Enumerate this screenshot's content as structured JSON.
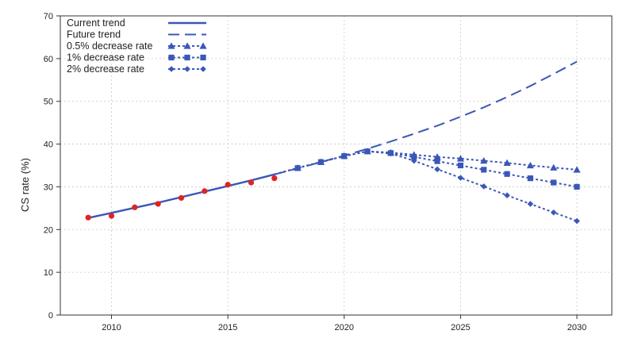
{
  "chart_data": {
    "type": "line",
    "title": "",
    "xlabel": "",
    "ylabel": "CS rate (%)",
    "xlim": [
      2007.8,
      2031.5
    ],
    "ylim": [
      0,
      70
    ],
    "xticks": [
      2010,
      2015,
      2020,
      2025,
      2030
    ],
    "yticks": [
      0,
      10,
      20,
      30,
      40,
      50,
      60,
      70
    ],
    "grid": true,
    "legend_position": "top-left",
    "color": "#3b57b8",
    "observed_points": {
      "color": "#e02424",
      "x": [
        2009,
        2010,
        2011,
        2012,
        2013,
        2014,
        2015,
        2016,
        2017
      ],
      "y": [
        22.8,
        23.2,
        25.2,
        26.0,
        27.4,
        29.0,
        30.5,
        31.0,
        32.0
      ]
    },
    "series": [
      {
        "name": "Current trend",
        "style": "solid",
        "marker": "none",
        "x": [
          2009,
          2010,
          2011,
          2012,
          2013,
          2014,
          2015,
          2016,
          2017
        ],
        "y": [
          22.7,
          23.9,
          25.1,
          26.3,
          27.6,
          28.9,
          30.2,
          31.5,
          32.9
        ]
      },
      {
        "name": "Future trend",
        "style": "dashed",
        "marker": "none",
        "x": [
          2017,
          2018,
          2019,
          2020,
          2021,
          2022,
          2023,
          2024,
          2025,
          2026,
          2027,
          2028,
          2029,
          2030
        ],
        "y": [
          32.9,
          34.3,
          35.8,
          37.3,
          38.9,
          40.6,
          42.4,
          44.3,
          46.4,
          48.6,
          51.0,
          53.6,
          56.4,
          59.3
        ]
      },
      {
        "name": "0.5% decrease rate",
        "style": "dotted",
        "marker": "triangle",
        "x": [
          2017,
          2018,
          2019,
          2020,
          2021,
          2022,
          2023,
          2024,
          2025,
          2026,
          2027,
          2028,
          2029,
          2030
        ],
        "y": [
          32.9,
          34.4,
          35.8,
          37.2,
          38.3,
          38.0,
          37.5,
          37.0,
          36.6,
          36.1,
          35.6,
          35.0,
          34.5,
          34.0
        ]
      },
      {
        "name": "1% decrease rate",
        "style": "dotted",
        "marker": "square",
        "x": [
          2017,
          2018,
          2019,
          2020,
          2021,
          2022,
          2023,
          2024,
          2025,
          2026,
          2027,
          2028,
          2029,
          2030
        ],
        "y": [
          32.9,
          34.4,
          35.8,
          37.2,
          38.3,
          37.9,
          37.0,
          36.0,
          35.0,
          34.0,
          33.0,
          32.0,
          31.0,
          30.0
        ]
      },
      {
        "name": "2% decrease rate",
        "style": "dotted",
        "marker": "diamond",
        "x": [
          2017,
          2018,
          2019,
          2020,
          2021,
          2022,
          2023,
          2024,
          2025,
          2026,
          2027,
          2028,
          2029,
          2030
        ],
        "y": [
          32.9,
          34.4,
          35.8,
          37.2,
          38.3,
          37.8,
          36.1,
          34.1,
          32.1,
          30.1,
          28.0,
          26.0,
          24.0,
          22.0
        ]
      }
    ]
  }
}
